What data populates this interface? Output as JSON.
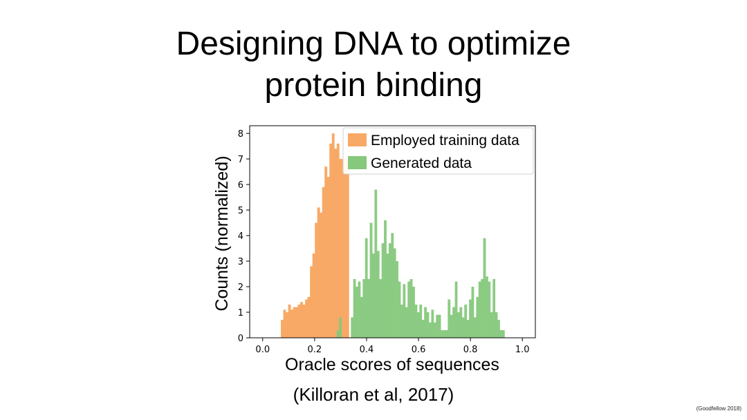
{
  "slide": {
    "title_line1": "Designing DNA to optimize",
    "title_line2": "protein binding",
    "citation": "(Killoran et al, 2017)",
    "credit": "(Goodfellow 2018)"
  },
  "chart_data": {
    "type": "histogram",
    "title": "",
    "xlabel": "Oracle scores of sequences",
    "ylabel": "Counts (normalized)",
    "xlim": [
      -0.05,
      1.05
    ],
    "ylim": [
      0,
      8.3
    ],
    "xticks": [
      0.0,
      0.2,
      0.4,
      0.6,
      0.8,
      1.0
    ],
    "xtick_labels": [
      "0.0",
      "0.2",
      "0.4",
      "0.6",
      "0.8",
      "1.0"
    ],
    "yticks": [
      0,
      1,
      2,
      3,
      4,
      5,
      6,
      7,
      8
    ],
    "ytick_labels": [
      "0",
      "1",
      "2",
      "3",
      "4",
      "5",
      "6",
      "7",
      "8"
    ],
    "grid": false,
    "legend_position": "top-right",
    "series": [
      {
        "name": "Employed training data",
        "color": "#f8a966",
        "bin_start": 0.07,
        "bin_width": 0.00935,
        "values": [
          0.7,
          1.1,
          1.0,
          1.3,
          1.1,
          1.2,
          1.2,
          1.3,
          1.4,
          1.3,
          1.5,
          1.6,
          2.8,
          3.3,
          4.5,
          5.1,
          4.9,
          5.9,
          6.7,
          6.3,
          7.6,
          8.0,
          7.4,
          7.6,
          7.0,
          7.0,
          7.0,
          7.0
        ]
      },
      {
        "name": "Generated data",
        "color": "#86c87c",
        "bin_start": 0.285,
        "bin_width": 0.0091,
        "values": [
          0.3,
          0.8,
          0.0,
          0.0,
          0.0,
          0.0,
          0.8,
          2.3,
          2.0,
          2.2,
          1.6,
          2.3,
          3.9,
          2.3,
          4.5,
          3.3,
          5.8,
          3.4,
          2.3,
          3.7,
          4.6,
          3.3,
          3.7,
          4.1,
          3.5,
          3.0,
          2.2,
          1.3,
          2.1,
          1.2,
          2.2,
          2.3,
          2.0,
          1.3,
          1.0,
          1.3,
          0.7,
          1.2,
          1.0,
          0.6,
          1.1,
          0.6,
          0.9,
          0.9,
          0.3,
          0.3,
          0.3,
          1.5,
          0.9,
          1.2,
          2.2,
          1.0,
          1.2,
          0.8,
          1.3,
          0.7,
          1.5,
          2.0,
          0.8,
          1.6,
          2.2,
          2.3,
          3.9,
          2.4,
          2.2,
          1.0,
          2.3,
          1.0,
          0.7,
          0.3,
          0.3
        ]
      }
    ]
  }
}
